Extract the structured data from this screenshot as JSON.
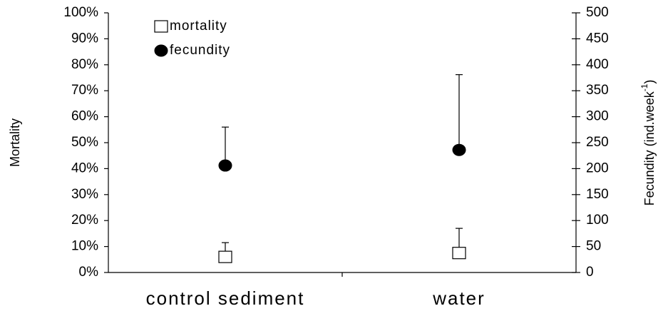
{
  "chart_data": {
    "type": "point",
    "categories": [
      "control sediment",
      "water"
    ],
    "ylabel": "Mortality",
    "y2label": [
      "Fecundity (ind.week",
      "-1",
      ")"
    ],
    "ylim": [
      0,
      100
    ],
    "yticks": [
      {
        "value": 0,
        "label": "0%"
      },
      {
        "value": 10,
        "label": "10%"
      },
      {
        "value": 20,
        "label": "20%"
      },
      {
        "value": 30,
        "label": "30%"
      },
      {
        "value": 40,
        "label": "40%"
      },
      {
        "value": 50,
        "label": "50%"
      },
      {
        "value": 60,
        "label": "60%"
      },
      {
        "value": 70,
        "label": "70%"
      },
      {
        "value": 80,
        "label": "80%"
      },
      {
        "value": 90,
        "label": "90%"
      },
      {
        "value": 100,
        "label": "100%"
      }
    ],
    "y2lim": [
      0,
      500
    ],
    "y2ticks": [
      0,
      50,
      100,
      150,
      200,
      250,
      300,
      350,
      400,
      450,
      500
    ],
    "series": [
      {
        "name": "mortality",
        "marker": "square",
        "color": "#ffffff",
        "values": [
          6,
          7.5
        ],
        "errors": [
          5.5,
          9.5
        ]
      },
      {
        "name": "fecundity",
        "marker": "circle",
        "color": "#000000",
        "axis": "y2",
        "values": [
          206,
          236
        ],
        "errors": [
          74,
          145
        ]
      }
    ]
  }
}
